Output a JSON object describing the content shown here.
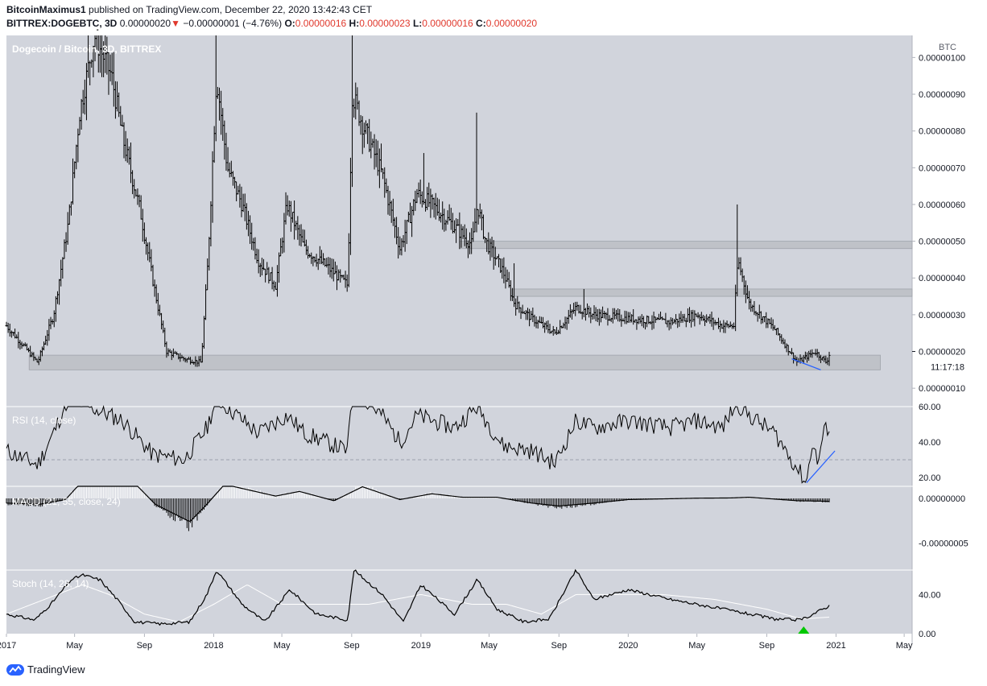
{
  "header": {
    "author": "BitcoinMaximus1",
    "published_text": "published on TradingView.com, December 22, 2020 13:42:43 CET",
    "symbol": "BITTREX:DOGEBTC, 3D",
    "last": "0.00000020",
    "change": "−0.00000001 (−4.76%)",
    "open_label": "O:",
    "open": "0.00000016",
    "high_label": "H:",
    "high": "0.00000023",
    "low_label": "L:",
    "low": "0.00000016",
    "close_label": "C:",
    "close": "0.00000020"
  },
  "colors": {
    "pane_bg": "#d1d4dc",
    "price_bar": "#000000",
    "zone": "#bcbec4",
    "trendline": "#2962ff",
    "rsi_midline": "#9aa0ab",
    "stoch_signal": "#ffffff",
    "signal_marker": "#00c800",
    "down_arrow": "#e0382c"
  },
  "footer": {
    "brand": "TradingView",
    "logo_icon": "tradingview-logo-icon"
  },
  "chart_data": [
    {
      "type": "candlestick",
      "title": "Dogecoin / Bitcoin, 3D, BITTREX",
      "ylabel": "BTC",
      "ylim": [
        5e-08,
        1.06e-06
      ],
      "yticks": [
        "0.00000010",
        "0.00000020",
        "0.00000030",
        "0.00000040",
        "0.00000050",
        "0.00000060",
        "0.00000070",
        "0.00000080",
        "0.00000090",
        "0.00000100"
      ],
      "last_price_label": "0.00000020",
      "countdown": "11:17:18",
      "x_ticks": [
        "2017",
        "May",
        "Sep",
        "2018",
        "May",
        "Sep",
        "2019",
        "May",
        "Sep",
        "2020",
        "May",
        "Sep",
        "2021",
        "May"
      ],
      "x_tick_dates": [
        "2017-01-01",
        "2017-05-01",
        "2017-09-01",
        "2018-01-01",
        "2018-05-01",
        "2018-09-01",
        "2019-01-01",
        "2019-05-01",
        "2019-09-01",
        "2020-01-01",
        "2020-05-01",
        "2020-09-01",
        "2021-01-01",
        "2021-05-01"
      ],
      "x_range": [
        "2017-01-01",
        "2021-05-15"
      ],
      "zones": [
        {
          "from": "2017-02-10",
          "to": "2021-03-20",
          "low": 1.5e-07,
          "high": 1.9e-07
        },
        {
          "from": "2019-03-10",
          "to": "2021-05-15",
          "low": 4.8e-07,
          "high": 5e-07
        },
        {
          "from": "2019-06-10",
          "to": "2021-05-15",
          "low": 3.5e-07,
          "high": 3.7e-07
        }
      ],
      "trendline": {
        "from": [
          "2020-10-15",
          1.8e-07
        ],
        "to": [
          "2020-12-05",
          1.5e-07
        ]
      },
      "anchors": [
        [
          "2017-01-01",
          2.7e-07
        ],
        [
          "2017-02-25",
          1.7e-07
        ],
        [
          "2017-03-25",
          3e-07
        ],
        [
          "2017-04-20",
          5.5e-07
        ],
        [
          "2017-05-10",
          8.5e-07
        ],
        [
          "2017-06-05",
          1.06e-06
        ],
        [
          "2017-07-05",
          9.5e-07
        ],
        [
          "2017-07-25",
          7.8e-07
        ],
        [
          "2017-08-25",
          5.8e-07
        ],
        [
          "2017-09-15",
          4e-07
        ],
        [
          "2017-10-10",
          2e-07
        ],
        [
          "2017-11-10",
          1.8e-07
        ],
        [
          "2017-12-10",
          1.7e-07
        ],
        [
          "2017-12-22",
          4.5e-07
        ],
        [
          "2018-01-06",
          9.5e-07
        ],
        [
          "2018-01-25",
          7e-07
        ],
        [
          "2018-02-20",
          6e-07
        ],
        [
          "2018-03-20",
          4.5e-07
        ],
        [
          "2018-04-20",
          3.8e-07
        ],
        [
          "2018-05-10",
          6e-07
        ],
        [
          "2018-06-10",
          4.8e-07
        ],
        [
          "2018-07-20",
          4.3e-07
        ],
        [
          "2018-08-25",
          3.8e-07
        ],
        [
          "2018-09-02",
          9e-07
        ],
        [
          "2018-09-20",
          8.2e-07
        ],
        [
          "2018-10-25",
          6.8e-07
        ],
        [
          "2018-11-25",
          4.8e-07
        ],
        [
          "2018-12-25",
          6.3e-07
        ],
        [
          "2019-01-20",
          6e-07
        ],
        [
          "2019-03-01",
          5.4e-07
        ],
        [
          "2019-04-01",
          4.9e-07
        ],
        [
          "2019-04-10",
          6e-07
        ],
        [
          "2019-04-25",
          5e-07
        ],
        [
          "2019-05-25",
          4.2e-07
        ],
        [
          "2019-06-15",
          3.3e-07
        ],
        [
          "2019-07-15",
          2.9e-07
        ],
        [
          "2019-08-25",
          2.5e-07
        ],
        [
          "2019-10-01",
          3.2e-07
        ],
        [
          "2019-11-01",
          3e-07
        ],
        [
          "2020-01-01",
          2.9e-07
        ],
        [
          "2020-03-15",
          2.8e-07
        ],
        [
          "2020-05-01",
          3e-07
        ],
        [
          "2020-06-15",
          2.7e-07
        ],
        [
          "2020-07-05",
          2.7e-07
        ],
        [
          "2020-07-12",
          4.5e-07
        ],
        [
          "2020-08-01",
          3.3e-07
        ],
        [
          "2020-09-15",
          2.6e-07
        ],
        [
          "2020-10-25",
          1.7e-07
        ],
        [
          "2020-11-25",
          2e-07
        ],
        [
          "2020-12-15",
          1.7e-07
        ],
        [
          "2020-12-22",
          2e-07
        ]
      ],
      "spikes": [
        [
          "2017-05-25",
          1.06e-06
        ],
        [
          "2018-01-06",
          1.06e-06
        ],
        [
          "2018-09-03",
          1.06e-06
        ],
        [
          "2019-01-05",
          7.4e-07
        ],
        [
          "2019-04-10",
          8.5e-07
        ],
        [
          "2019-06-15",
          4.4e-07
        ],
        [
          "2019-10-15",
          3.7e-07
        ],
        [
          "2020-07-10",
          6e-07
        ],
        [
          "2020-12-22",
          2.3e-07
        ]
      ]
    },
    {
      "type": "line",
      "title": "RSI (14, close)",
      "ylim": [
        15,
        60
      ],
      "yticks": [
        "20.00",
        "40.00",
        "60.00"
      ],
      "midline": 30,
      "anchors": [
        [
          "2017-01-01",
          35
        ],
        [
          "2017-02-25",
          27
        ],
        [
          "2017-03-25",
          45
        ],
        [
          "2017-04-20",
          65
        ],
        [
          "2017-07-25",
          52
        ],
        [
          "2017-09-15",
          33
        ],
        [
          "2017-11-10",
          30
        ],
        [
          "2017-12-20",
          48
        ],
        [
          "2018-01-06",
          65
        ],
        [
          "2018-03-20",
          45
        ],
        [
          "2018-05-10",
          55
        ],
        [
          "2018-06-10",
          45
        ],
        [
          "2018-08-25",
          35
        ],
        [
          "2018-09-02",
          70
        ],
        [
          "2018-10-25",
          55
        ],
        [
          "2018-11-25",
          40
        ],
        [
          "2018-12-25",
          55
        ],
        [
          "2019-03-01",
          48
        ],
        [
          "2019-04-10",
          60
        ],
        [
          "2019-05-25",
          38
        ],
        [
          "2019-07-15",
          35
        ],
        [
          "2019-08-25",
          28
        ],
        [
          "2019-10-01",
          52
        ],
        [
          "2019-11-01",
          48
        ],
        [
          "2020-01-01",
          52
        ],
        [
          "2020-03-15",
          48
        ],
        [
          "2020-05-01",
          52
        ],
        [
          "2020-06-15",
          48
        ],
        [
          "2020-07-10",
          62
        ],
        [
          "2020-08-01",
          55
        ],
        [
          "2020-09-15",
          45
        ],
        [
          "2020-10-25",
          25
        ],
        [
          "2020-11-10",
          17
        ],
        [
          "2020-11-20",
          40
        ],
        [
          "2020-11-30",
          28
        ],
        [
          "2020-12-10",
          45
        ],
        [
          "2020-12-22",
          50
        ]
      ],
      "trendline": {
        "from": [
          "2020-11-10",
          17
        ],
        "to": [
          "2020-12-30",
          35
        ]
      }
    },
    {
      "type": "macd",
      "title": "MACD (21, 55, close, 24)",
      "ylim": [
        -8e-08,
        1.35e-08
      ],
      "yticks": [
        "0.00000000",
        "-0.00000005"
      ],
      "anchors": [
        [
          "2017-01-01",
          -4e-09
        ],
        [
          "2017-03-01",
          -5e-09
        ],
        [
          "2017-04-15",
          -1e-09
        ],
        [
          "2017-05-15",
          1.5e-08
        ],
        [
          "2017-08-01",
          2e-08
        ],
        [
          "2017-09-20",
          -5e-09
        ],
        [
          "2017-11-20",
          -2e-08
        ],
        [
          "2017-12-20",
          -5e-09
        ],
        [
          "2018-01-20",
          1.2e-08
        ],
        [
          "2018-04-20",
          2e-09
        ],
        [
          "2018-06-01",
          6e-09
        ],
        [
          "2018-08-01",
          -2e-09
        ],
        [
          "2018-09-20",
          1e-08
        ],
        [
          "2018-11-25",
          -1e-09
        ],
        [
          "2019-01-20",
          4e-09
        ],
        [
          "2019-03-15",
          1e-09
        ],
        [
          "2019-05-15",
          1e-09
        ],
        [
          "2019-07-15",
          -4e-09
        ],
        [
          "2019-09-01",
          -6.5e-09
        ],
        [
          "2019-11-01",
          -4e-09
        ],
        [
          "2020-01-01",
          -1e-09
        ],
        [
          "2020-05-01",
          2e-10
        ],
        [
          "2020-07-01",
          4e-10
        ],
        [
          "2020-08-01",
          1e-09
        ],
        [
          "2020-10-25",
          -2e-09
        ],
        [
          "2020-12-22",
          -2.5e-09
        ]
      ]
    },
    {
      "type": "line",
      "title": "Stoch (14, 28, 14)",
      "ylim": [
        0,
        65
      ],
      "yticks": [
        "0.00",
        "40.00"
      ],
      "k_anchors": [
        [
          "2017-01-01",
          20
        ],
        [
          "2017-02-20",
          14
        ],
        [
          "2017-03-20",
          30
        ],
        [
          "2017-04-25",
          55
        ],
        [
          "2017-05-15",
          60
        ],
        [
          "2017-06-15",
          55
        ],
        [
          "2017-07-15",
          35
        ],
        [
          "2017-08-15",
          12
        ],
        [
          "2017-10-01",
          10
        ],
        [
          "2017-11-20",
          12
        ],
        [
          "2017-12-20",
          40
        ],
        [
          "2018-01-06",
          65
        ],
        [
          "2018-02-20",
          30
        ],
        [
          "2018-04-01",
          12
        ],
        [
          "2018-05-15",
          45
        ],
        [
          "2018-07-01",
          20
        ],
        [
          "2018-08-25",
          14
        ],
        [
          "2018-09-05",
          65
        ],
        [
          "2018-10-25",
          40
        ],
        [
          "2018-12-01",
          12
        ],
        [
          "2019-01-01",
          50
        ],
        [
          "2019-03-01",
          20
        ],
        [
          "2019-04-10",
          55
        ],
        [
          "2019-05-15",
          25
        ],
        [
          "2019-07-01",
          12
        ],
        [
          "2019-08-15",
          15
        ],
        [
          "2019-10-01",
          65
        ],
        [
          "2019-11-01",
          35
        ],
        [
          "2020-01-01",
          45
        ],
        [
          "2020-03-15",
          35
        ],
        [
          "2020-05-01",
          30
        ],
        [
          "2020-07-15",
          22
        ],
        [
          "2020-09-15",
          15
        ],
        [
          "2020-11-01",
          14
        ],
        [
          "2020-12-22",
          29
        ]
      ],
      "d_anchors": [
        [
          "2017-01-01",
          20
        ],
        [
          "2017-05-15",
          50
        ],
        [
          "2017-07-01",
          40
        ],
        [
          "2017-09-01",
          20
        ],
        [
          "2017-11-01",
          12
        ],
        [
          "2018-01-01",
          30
        ],
        [
          "2018-03-01",
          50
        ],
        [
          "2018-05-01",
          30
        ],
        [
          "2018-08-01",
          30
        ],
        [
          "2018-10-01",
          30
        ],
        [
          "2019-01-01",
          40
        ],
        [
          "2019-04-01",
          30
        ],
        [
          "2019-06-01",
          30
        ],
        [
          "2019-08-01",
          20
        ],
        [
          "2019-10-01",
          40
        ],
        [
          "2019-12-01",
          40
        ],
        [
          "2020-03-01",
          40
        ],
        [
          "2020-06-01",
          35
        ],
        [
          "2020-09-01",
          25
        ],
        [
          "2020-11-01",
          15
        ],
        [
          "2020-12-22",
          17
        ]
      ],
      "signal": {
        "date": "2020-11-05",
        "value": 0
      }
    }
  ]
}
